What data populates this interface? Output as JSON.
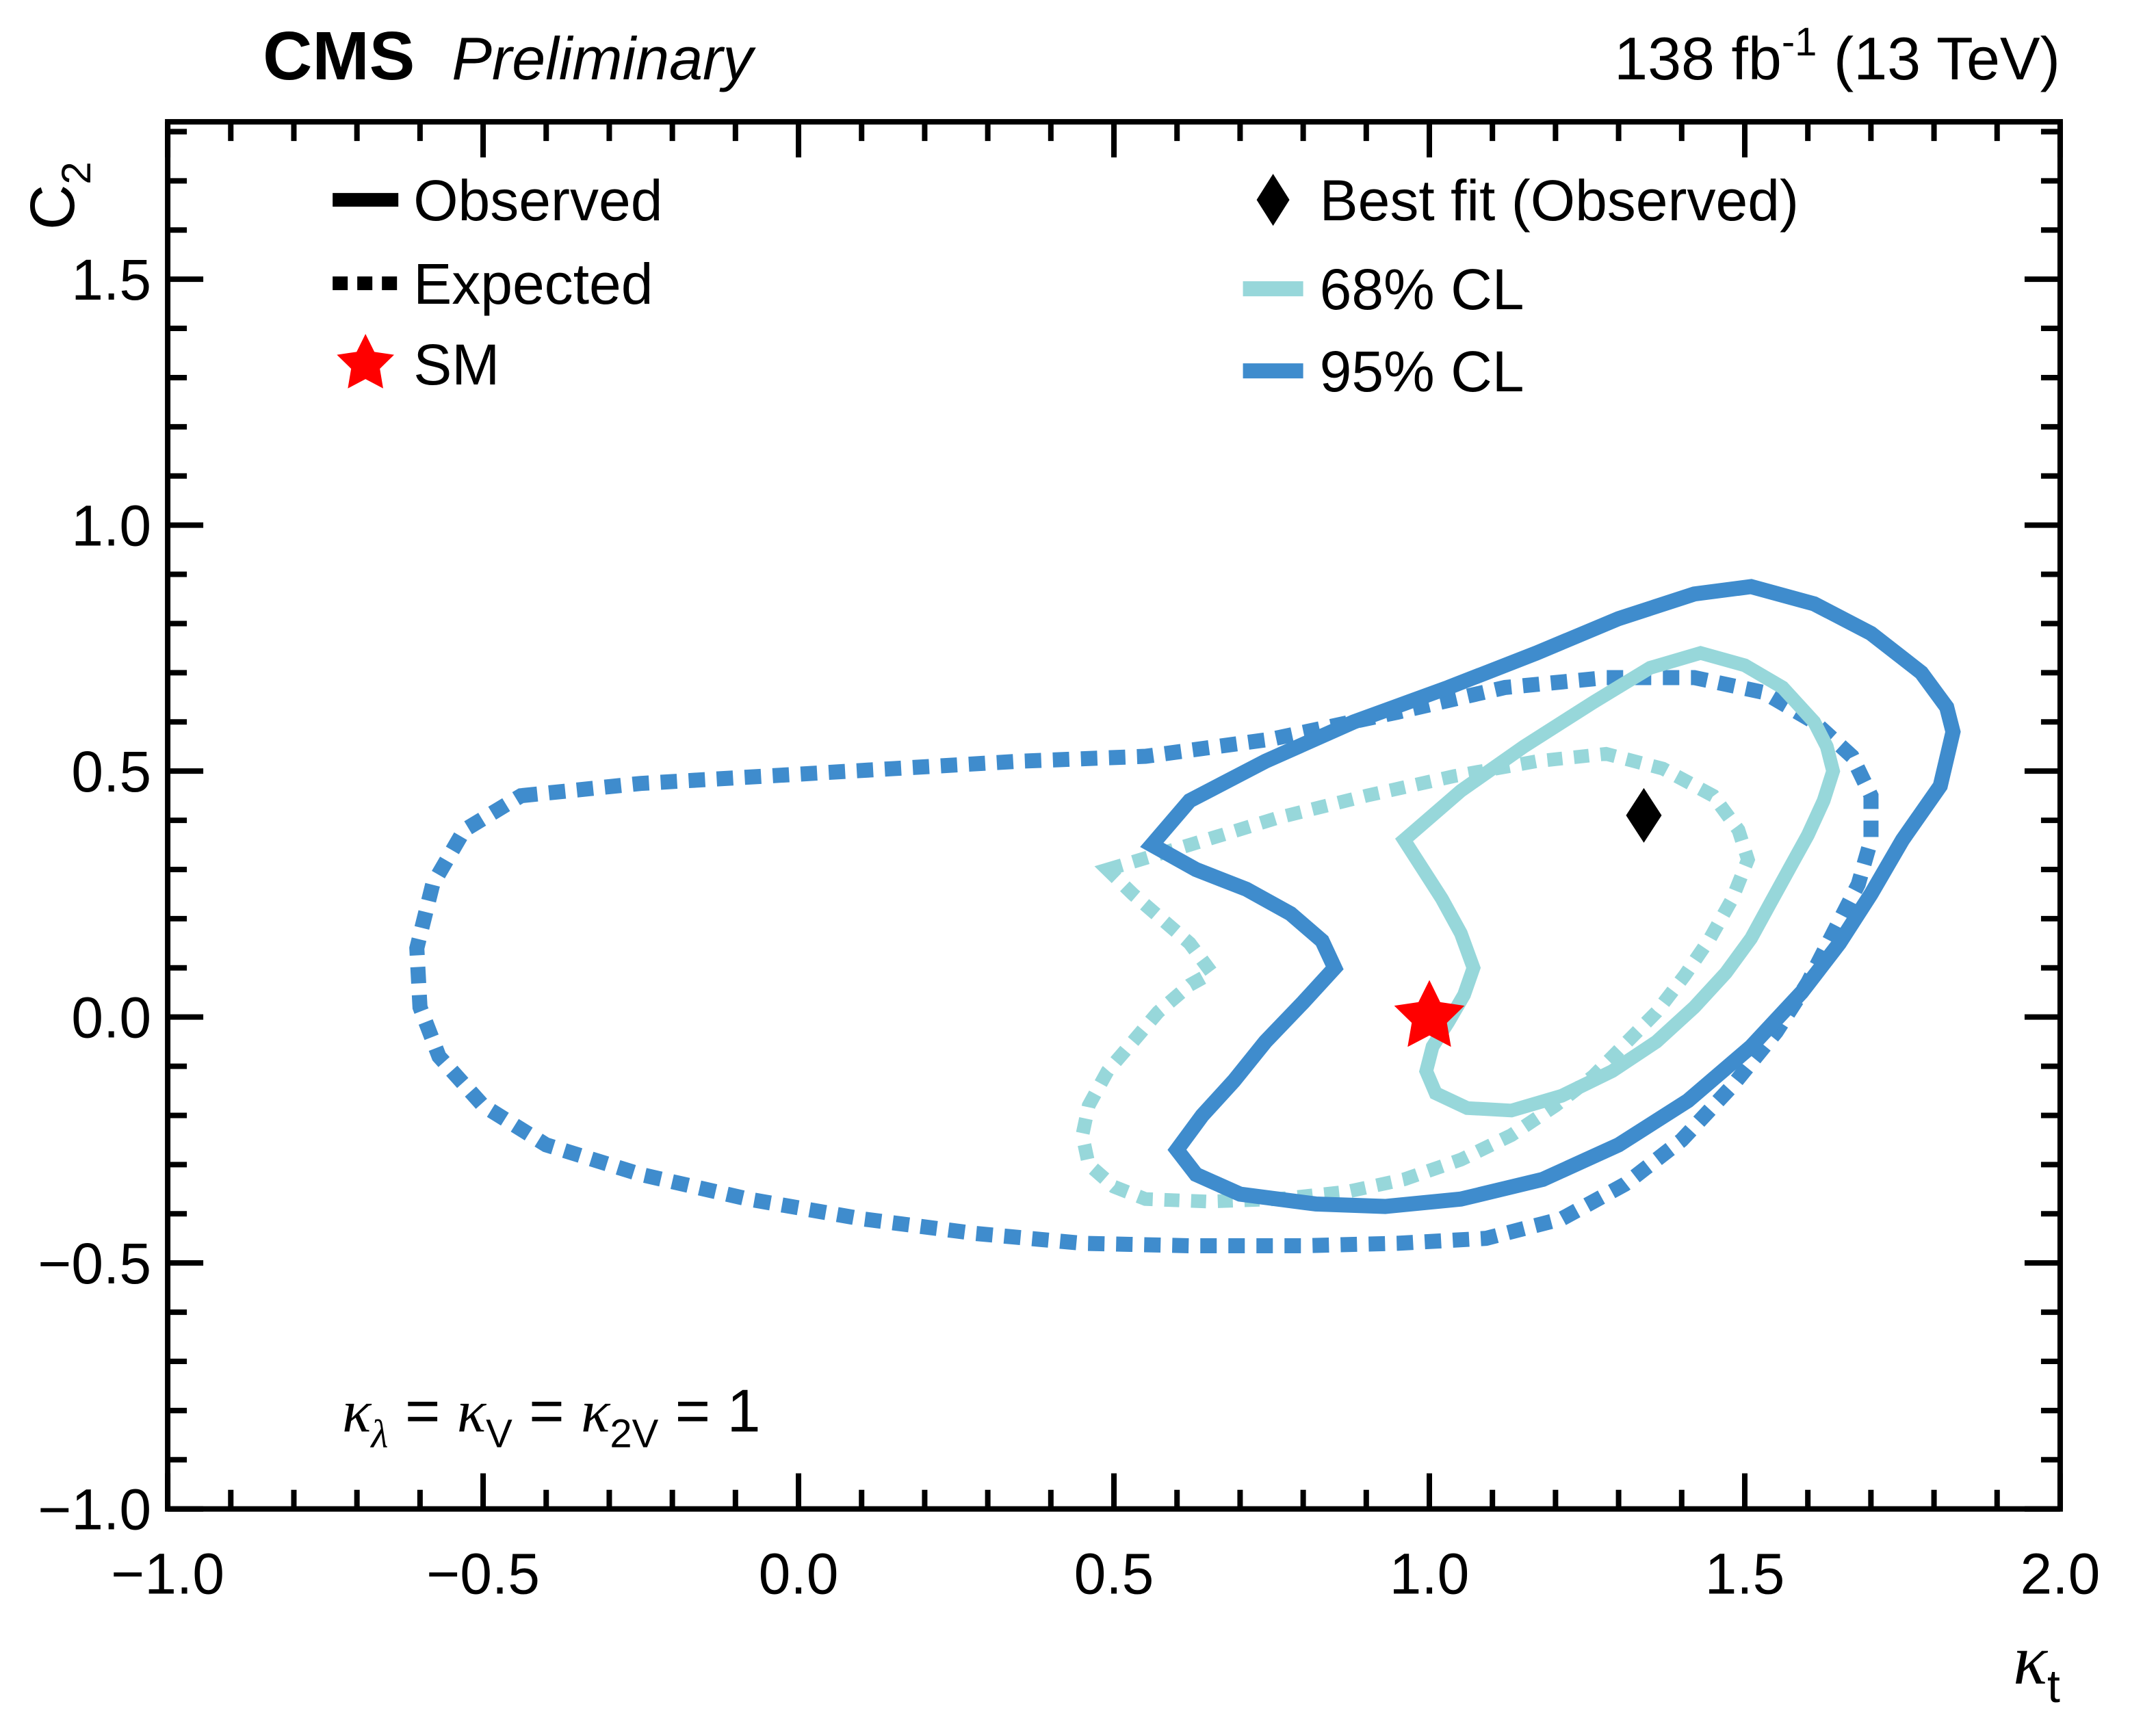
{
  "header": {
    "experiment": "CMS",
    "status": "Preliminary",
    "lumi_parts": [
      {
        "t": "138 fb"
      },
      {
        "t": "-1",
        "s": "sup"
      },
      {
        "t": " (13 TeV)"
      }
    ]
  },
  "chart_data": {
    "type": "contour",
    "title": "CMS Preliminary 138 fb-1 (13 TeV)",
    "xlabel_parts": [
      {
        "t": "κ",
        "f": "sym"
      },
      {
        "t": "t",
        "s": "sub"
      }
    ],
    "ylabel_parts": [
      {
        "t": "C"
      },
      {
        "t": "2",
        "s": "sub"
      }
    ],
    "xlim": [
      -1.0,
      2.0
    ],
    "ylim": [
      -1.0,
      1.82
    ],
    "grid": false,
    "minor_tick_step": 0.1,
    "xticks": {
      "values": [
        -1.0,
        -0.5,
        0.0,
        0.5,
        1.0,
        1.5,
        2.0
      ],
      "labels": [
        "−1.0",
        "−0.5",
        "0.0",
        "0.5",
        "1.0",
        "1.5",
        "2.0"
      ]
    },
    "yticks": {
      "values": [
        -1.0,
        -0.5,
        0.0,
        0.5,
        1.0,
        1.5
      ],
      "labels": [
        "−1.0",
        "−0.5",
        "0.0",
        "0.5",
        "1.0",
        "1.5"
      ]
    },
    "colors": {
      "cl68": "#97d7da",
      "cl95": "#3f8ccd",
      "observed_black": "#000000",
      "sm_star_red": "#ff0000"
    },
    "annotation_parts": [
      {
        "t": "κ",
        "f": "sym"
      },
      {
        "t": "λ",
        "s": "sub",
        "f": "sym"
      },
      {
        "t": " = "
      },
      {
        "t": "κ",
        "f": "sym"
      },
      {
        "t": "V",
        "s": "sub"
      },
      {
        "t": " = "
      },
      {
        "t": "κ",
        "f": "sym"
      },
      {
        "t": "2V",
        "s": "sub"
      },
      {
        "t": " = 1"
      }
    ],
    "legend": {
      "left": [
        {
          "id": "observed",
          "marker": "line",
          "style": "solid",
          "color_key": "observed_black",
          "label": "Observed"
        },
        {
          "id": "expected",
          "marker": "line",
          "style": "dashed",
          "color_key": "observed_black",
          "label": "Expected"
        },
        {
          "id": "sm",
          "marker": "star",
          "color_key": "sm_star_red",
          "label": "SM"
        }
      ],
      "right": [
        {
          "id": "best_fit",
          "marker": "diamond",
          "color_key": "observed_black",
          "label": "Best fit (Observed)"
        },
        {
          "id": "cl68",
          "marker": "line",
          "style": "solid",
          "color_key": "cl68",
          "label": "68% CL"
        },
        {
          "id": "cl95",
          "marker": "line",
          "style": "solid",
          "color_key": "cl95",
          "label": "95% CL"
        }
      ]
    },
    "markers": [
      {
        "id": "sm",
        "label": "SM",
        "shape": "star",
        "color_key": "sm_star_red",
        "x": 1.0,
        "y": 0.0
      },
      {
        "id": "best_fit",
        "label": "Best fit (Observed)",
        "shape": "diamond",
        "color_key": "observed_black",
        "x": 1.34,
        "y": 0.41
      }
    ],
    "series": [
      {
        "id": "expected_68",
        "name": "68% CL (Expected)",
        "style": "dashed",
        "color_key": "cl68",
        "points": [
          [
            0.49,
            0.3
          ],
          [
            0.62,
            0.35
          ],
          [
            0.76,
            0.405
          ],
          [
            0.9,
            0.45
          ],
          [
            1.04,
            0.49
          ],
          [
            1.17,
            0.52
          ],
          [
            1.28,
            0.535
          ],
          [
            1.37,
            0.505
          ],
          [
            1.45,
            0.45
          ],
          [
            1.49,
            0.38
          ],
          [
            1.505,
            0.32
          ],
          [
            1.48,
            0.24
          ],
          [
            1.445,
            0.16
          ],
          [
            1.405,
            0.085
          ],
          [
            1.36,
            0.01
          ],
          [
            1.31,
            -0.055
          ],
          [
            1.26,
            -0.12
          ],
          [
            1.2,
            -0.18
          ],
          [
            1.13,
            -0.24
          ],
          [
            1.05,
            -0.29
          ],
          [
            0.96,
            -0.33
          ],
          [
            0.87,
            -0.355
          ],
          [
            0.76,
            -0.37
          ],
          [
            0.65,
            -0.375
          ],
          [
            0.55,
            -0.37
          ],
          [
            0.5,
            -0.345
          ],
          [
            0.46,
            -0.3
          ],
          [
            0.45,
            -0.24
          ],
          [
            0.46,
            -0.18
          ],
          [
            0.49,
            -0.11
          ],
          [
            0.53,
            -0.05
          ],
          [
            0.57,
            0.01
          ],
          [
            0.62,
            0.065
          ],
          [
            0.655,
            0.09
          ],
          [
            0.62,
            0.15
          ],
          [
            0.575,
            0.2
          ],
          [
            0.53,
            0.25
          ]
        ]
      },
      {
        "id": "expected_95",
        "name": "95% CL (Expected)",
        "style": "dashed",
        "color_key": "cl95",
        "points": [
          [
            -0.44,
            0.45
          ],
          [
            -0.25,
            0.475
          ],
          [
            -0.05,
            0.49
          ],
          [
            0.15,
            0.505
          ],
          [
            0.35,
            0.52
          ],
          [
            0.55,
            0.53
          ],
          [
            0.75,
            0.565
          ],
          [
            0.95,
            0.62
          ],
          [
            1.12,
            0.67
          ],
          [
            1.28,
            0.69
          ],
          [
            1.42,
            0.69
          ],
          [
            1.53,
            0.66
          ],
          [
            1.61,
            0.6
          ],
          [
            1.67,
            0.53
          ],
          [
            1.7,
            0.45
          ],
          [
            1.7,
            0.36
          ],
          [
            1.68,
            0.27
          ],
          [
            1.64,
            0.17
          ],
          [
            1.6,
            0.07
          ],
          [
            1.55,
            -0.03
          ],
          [
            1.48,
            -0.14
          ],
          [
            1.4,
            -0.25
          ],
          [
            1.31,
            -0.34
          ],
          [
            1.21,
            -0.41
          ],
          [
            1.09,
            -0.45
          ],
          [
            0.95,
            -0.46
          ],
          [
            0.8,
            -0.465
          ],
          [
            0.62,
            -0.465
          ],
          [
            0.45,
            -0.46
          ],
          [
            0.28,
            -0.44
          ],
          [
            0.1,
            -0.41
          ],
          [
            -0.08,
            -0.37
          ],
          [
            -0.25,
            -0.32
          ],
          [
            -0.4,
            -0.26
          ],
          [
            -0.5,
            -0.18
          ],
          [
            -0.57,
            -0.08
          ],
          [
            -0.6,
            0.02
          ],
          [
            -0.605,
            0.14
          ],
          [
            -0.58,
            0.27
          ],
          [
            -0.53,
            0.38
          ]
        ]
      },
      {
        "id": "observed_68",
        "name": "68% CL (Observed)",
        "style": "solid",
        "color_key": "cl68",
        "points": [
          [
            0.96,
            0.36
          ],
          [
            1.05,
            0.46
          ],
          [
            1.15,
            0.55
          ],
          [
            1.26,
            0.64
          ],
          [
            1.35,
            0.71
          ],
          [
            1.43,
            0.74
          ],
          [
            1.5,
            0.715
          ],
          [
            1.56,
            0.67
          ],
          [
            1.61,
            0.6
          ],
          [
            1.63,
            0.55
          ],
          [
            1.64,
            0.5
          ],
          [
            1.625,
            0.44
          ],
          [
            1.6,
            0.37
          ],
          [
            1.57,
            0.3
          ],
          [
            1.54,
            0.23
          ],
          [
            1.51,
            0.16
          ],
          [
            1.47,
            0.09
          ],
          [
            1.42,
            0.02
          ],
          [
            1.36,
            -0.05
          ],
          [
            1.29,
            -0.11
          ],
          [
            1.21,
            -0.16
          ],
          [
            1.13,
            -0.19
          ],
          [
            1.06,
            -0.185
          ],
          [
            1.01,
            -0.155
          ],
          [
            0.995,
            -0.11
          ],
          [
            1.005,
            -0.06
          ],
          [
            1.03,
            -0.01
          ],
          [
            1.055,
            0.045
          ],
          [
            1.07,
            0.1
          ],
          [
            1.05,
            0.17
          ],
          [
            1.02,
            0.24
          ],
          [
            0.99,
            0.3
          ]
        ]
      },
      {
        "id": "observed_95",
        "name": "95% CL (Observed)",
        "style": "solid",
        "color_key": "cl95",
        "points": [
          [
            0.56,
            0.35
          ],
          [
            0.62,
            0.44
          ],
          [
            0.74,
            0.52
          ],
          [
            0.88,
            0.6
          ],
          [
            1.03,
            0.67
          ],
          [
            1.17,
            0.74
          ],
          [
            1.3,
            0.81
          ],
          [
            1.42,
            0.86
          ],
          [
            1.51,
            0.875
          ],
          [
            1.61,
            0.84
          ],
          [
            1.7,
            0.78
          ],
          [
            1.78,
            0.7
          ],
          [
            1.82,
            0.63
          ],
          [
            1.83,
            0.58
          ],
          [
            1.81,
            0.47
          ],
          [
            1.75,
            0.36
          ],
          [
            1.7,
            0.25
          ],
          [
            1.65,
            0.15
          ],
          [
            1.59,
            0.05
          ],
          [
            1.51,
            -0.06
          ],
          [
            1.41,
            -0.17
          ],
          [
            1.3,
            -0.26
          ],
          [
            1.18,
            -0.33
          ],
          [
            1.05,
            -0.37
          ],
          [
            0.93,
            -0.385
          ],
          [
            0.82,
            -0.38
          ],
          [
            0.7,
            -0.36
          ],
          [
            0.63,
            -0.32
          ],
          [
            0.6,
            -0.27
          ],
          [
            0.64,
            -0.2
          ],
          [
            0.69,
            -0.13
          ],
          [
            0.74,
            -0.05
          ],
          [
            0.8,
            0.03
          ],
          [
            0.85,
            0.1
          ],
          [
            0.83,
            0.155
          ],
          [
            0.78,
            0.21
          ],
          [
            0.71,
            0.26
          ],
          [
            0.63,
            0.3
          ]
        ]
      }
    ]
  }
}
